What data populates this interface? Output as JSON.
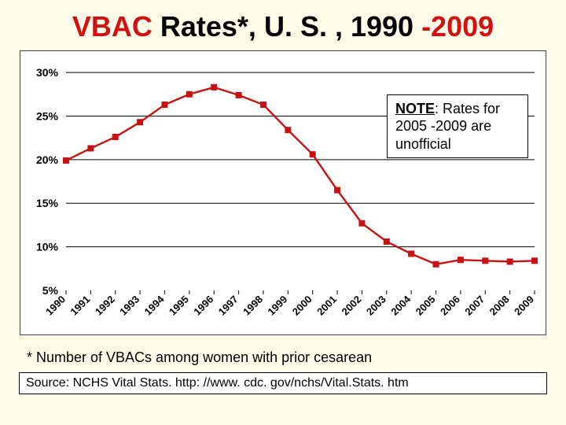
{
  "title": {
    "t1": "VBAC",
    "t2": "Rates*, U. S. , 1990",
    "t3": "-2009"
  },
  "chart": {
    "type": "line",
    "years": [
      "1990",
      "1991",
      "1992",
      "1993",
      "1994",
      "1995",
      "1996",
      "1997",
      "1998",
      "1999",
      "2000",
      "2001",
      "2002",
      "2003",
      "2004",
      "2005",
      "2006",
      "2007",
      "2008",
      "2009"
    ],
    "values": [
      19.9,
      21.3,
      22.6,
      24.3,
      26.3,
      27.5,
      28.3,
      27.4,
      26.3,
      23.4,
      20.6,
      16.5,
      12.7,
      10.6,
      9.2,
      8.0,
      8.5,
      8.4,
      8.3,
      8.4
    ],
    "y_ticks": [
      5,
      10,
      15,
      20,
      25,
      30
    ],
    "y_tick_labels": [
      "5%",
      "10%",
      "15%",
      "20%",
      "25%",
      "30%"
    ],
    "ylim": [
      5,
      31
    ],
    "line_color": "#c61212",
    "line_width": 2.4,
    "marker_size": 8,
    "marker_type": "square",
    "marker_color": "#c61212",
    "grid_color": "#000000",
    "background": "#ffffff",
    "axis_font_size": 14,
    "axis_font_weight": "bold",
    "axis_color": "#000000"
  },
  "note": {
    "heading": "NOTE",
    "rest": ": Rates for 2005 -2009 are unofficial"
  },
  "footnote": "* Number of VBACs among women with prior cesarean",
  "source": "Source: NCHS Vital Stats. http: //www. cdc. gov/nchs/Vital.Stats. htm"
}
